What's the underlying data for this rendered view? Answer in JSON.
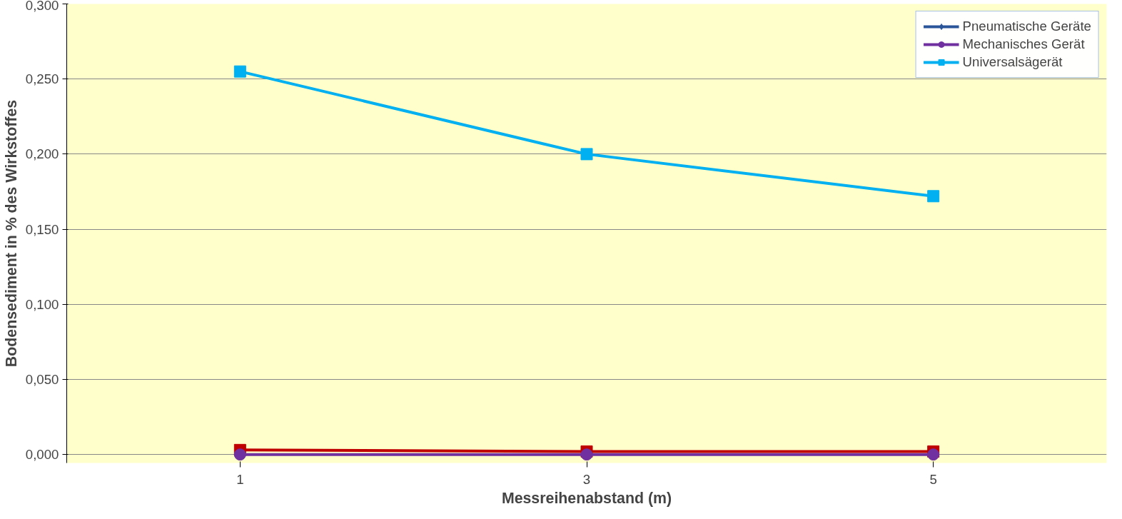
{
  "chart_data": {
    "type": "line",
    "xlabel": "Messreihenabstand (m)",
    "ylabel": "Bodensediment in % des Wirkstoffes",
    "categories": [
      "1",
      "3",
      "5"
    ],
    "ylim": [
      0,
      0.3
    ],
    "yticks": [
      {
        "value": 0,
        "label": "0,000"
      },
      {
        "value": 0.05,
        "label": "0,050"
      },
      {
        "value": 0.1,
        "label": "0,100"
      },
      {
        "value": 0.15,
        "label": "0,150"
      },
      {
        "value": 0.2,
        "label": "0,200"
      },
      {
        "value": 0.25,
        "label": "0,250"
      },
      {
        "value": 0.3,
        "label": "0,300"
      }
    ],
    "grid": "y",
    "legend": "top right",
    "series": [
      {
        "name": "Pneumatische Geräte",
        "color": "#2a5599",
        "marker": "diamond",
        "values": [
          null,
          null,
          null
        ]
      },
      {
        "color": "#c00000",
        "marker": "square",
        "values": [
          0.003,
          0.002,
          0.002
        ]
      },
      {
        "color": "#92d050",
        "marker": "triangle",
        "values": [
          null,
          null,
          null
        ]
      },
      {
        "name": "Mechanisches Gerät",
        "color": "#7030a0",
        "marker": "circle",
        "values": [
          0,
          0,
          0
        ]
      },
      {
        "name": "Universalsägerät",
        "color": "#00b0f0",
        "marker": "square",
        "values": [
          0.255,
          0.2,
          0.172
        ]
      }
    ]
  }
}
